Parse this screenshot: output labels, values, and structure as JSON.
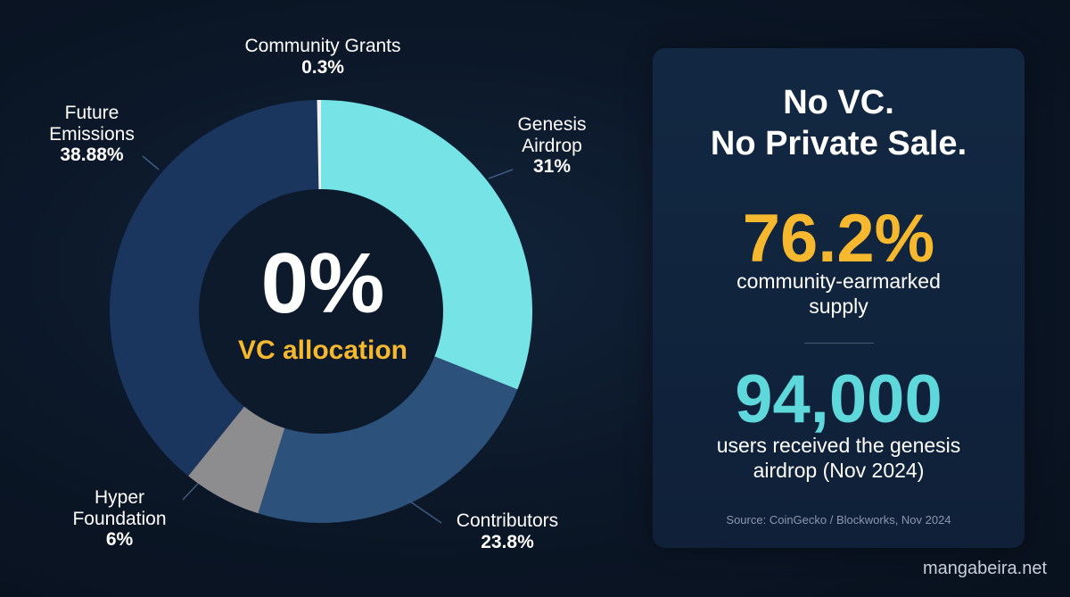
{
  "chart_data": {
    "type": "pie",
    "variant": "donut",
    "slices": [
      {
        "label": "Genesis\nAirdrop",
        "value": 31,
        "display": "31%",
        "color": "#76e3e6"
      },
      {
        "label": "Contributors",
        "value": 23.8,
        "display": "23.8%",
        "color": "#2c517a"
      },
      {
        "label": "Hyper\nFoundation",
        "value": 6,
        "display": "6%",
        "color": "#8d8d8f"
      },
      {
        "label": "Future\nEmissions",
        "value": 38.88,
        "display": "38.88%",
        "color": "#1a365e"
      },
      {
        "label": "Community Grants",
        "value": 0.3,
        "display": "0.3%",
        "color": "#f2f2f2"
      }
    ],
    "center": {
      "value": "0%",
      "caption": "VC allocation"
    }
  },
  "panel": {
    "headline": "No VC.\nNo Private Sale.",
    "stat1": {
      "number": "76.2%",
      "caption": "community-earmarked\nsupply"
    },
    "stat2": {
      "number": "94,000",
      "caption": "users received the genesis\nairdrop (Nov 2024)"
    },
    "source": "Source: CoinGecko / Blockworks, Nov 2024"
  },
  "watermark": "mangabeira.net",
  "colors": {
    "background": "#0b1626",
    "accent_gold": "#f5b82e",
    "accent_cyan": "#5fd8dc",
    "leader_line": "#3f5a80"
  }
}
